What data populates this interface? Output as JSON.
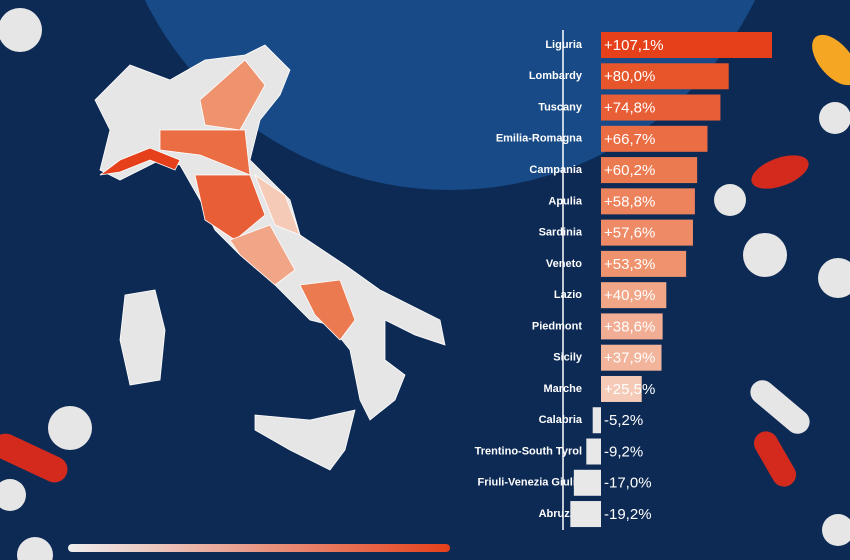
{
  "chart_data": {
    "type": "bar",
    "orientation": "horizontal",
    "categories": [
      "Liguria",
      "Lombardy",
      "Tuscany",
      "Emilia-Romagna",
      "Campania",
      "Apulia",
      "Sardinia",
      "Veneto",
      "Lazio",
      "Piedmont",
      "Sicily",
      "Marche",
      "Calabria",
      "Trentino-South Tyrol",
      "Friuli-Venezia Giulia",
      "Abruzzo"
    ],
    "values": [
      107.1,
      80.0,
      74.8,
      66.7,
      60.2,
      58.8,
      57.6,
      53.3,
      40.9,
      38.6,
      37.9,
      25.5,
      -5.2,
      -9.2,
      -17.0,
      -19.2
    ],
    "value_labels": [
      "+107,1%",
      "+80,0%",
      "+74,8%",
      "+66,7%",
      "+60,2%",
      "+58,8%",
      "+57,6%",
      "+53,3%",
      "+40,9%",
      "+38,6%",
      "+37,9%",
      "+25,5%",
      "-5,2%",
      "-9,2%",
      "-17,0%",
      "-19,2%"
    ],
    "colors": [
      "#e5401a",
      "#e7552a",
      "#e85f37",
      "#ea6d44",
      "#ec7a51",
      "#ed835d",
      "#ee8a66",
      "#ef936f",
      "#f1a688",
      "#f2ae94",
      "#f3b49c",
      "#f5cbb8",
      "#e8e8e8",
      "#e8e8e8",
      "#e8e8e8",
      "#e8e8e8"
    ]
  }
}
